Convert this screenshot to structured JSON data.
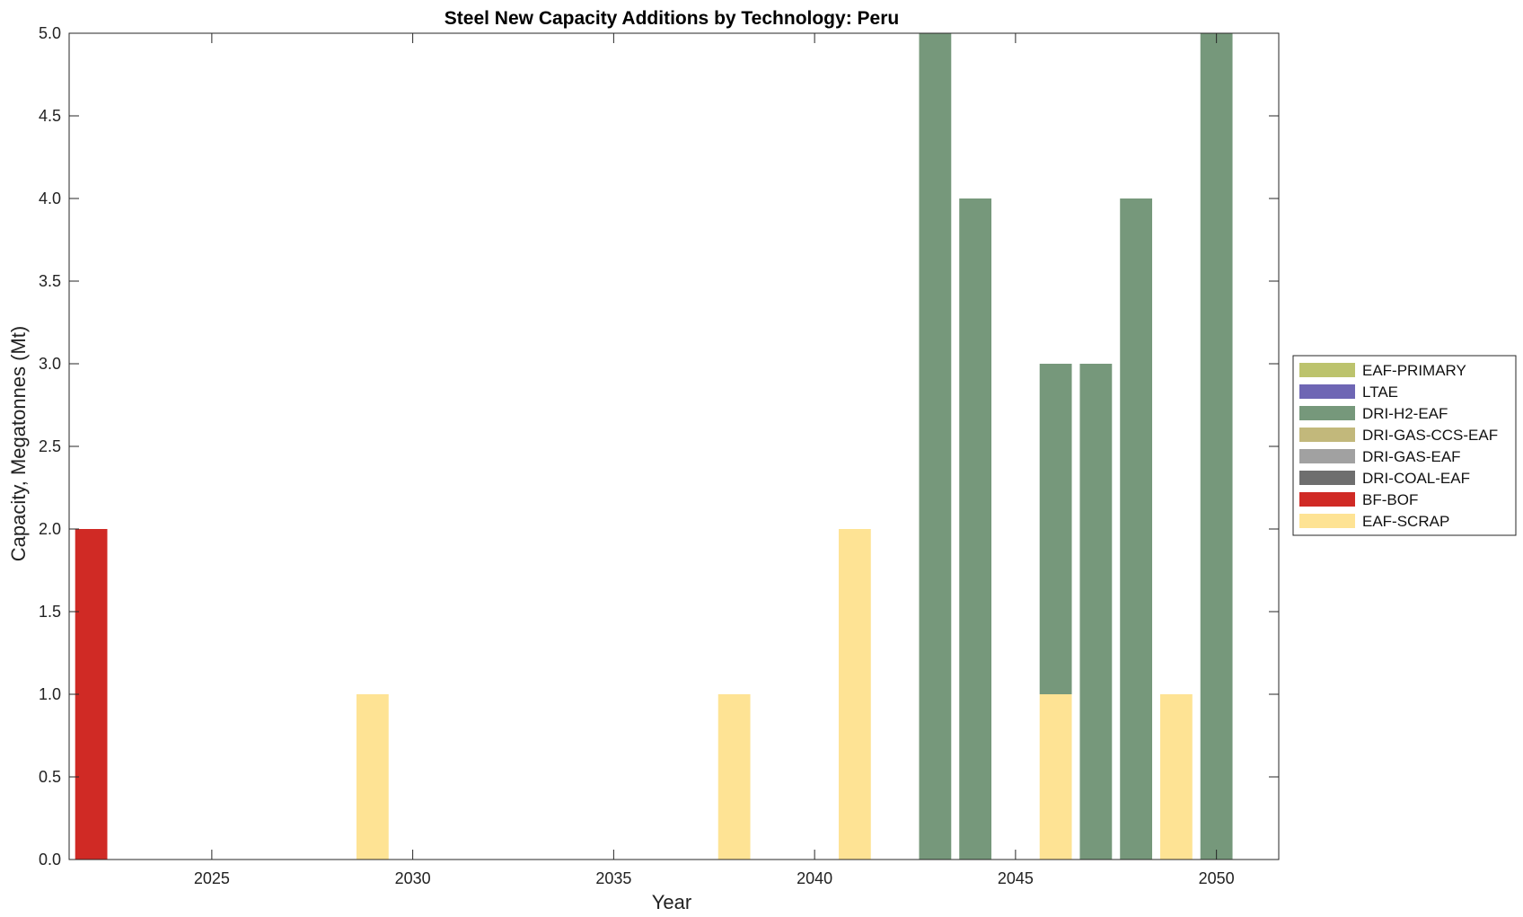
{
  "chart_data": {
    "type": "bar",
    "stacked": true,
    "title": "Steel New Capacity Additions by Technology: Peru",
    "xlabel": "Year",
    "ylabel": "Capacity, Megatonnes (Mt)",
    "xlim": [
      2021.45,
      2051.55
    ],
    "ylim": [
      0,
      5
    ],
    "xticks": [
      2025,
      2030,
      2035,
      2040,
      2045,
      2050
    ],
    "yticks": [
      0.0,
      0.5,
      1.0,
      1.5,
      2.0,
      2.5,
      3.0,
      3.5,
      4.0,
      4.5,
      5.0
    ],
    "ytick_labels": [
      "0.0",
      "0.5",
      "1.0",
      "1.5",
      "2.0",
      "2.5",
      "3.0",
      "3.5",
      "4.0",
      "4.5",
      "5.0"
    ],
    "grid": false,
    "legend_position": "right",
    "stack_order": [
      "EAF-SCRAP",
      "BF-BOF",
      "DRI-COAL-EAF",
      "DRI-GAS-EAF",
      "DRI-GAS-CCS-EAF",
      "DRI-H2-EAF",
      "LTAE",
      "EAF-PRIMARY"
    ],
    "x": [
      2022,
      2029,
      2038,
      2041,
      2043,
      2044,
      2046,
      2047,
      2048,
      2049,
      2050
    ],
    "series": [
      {
        "name": "EAF-PRIMARY",
        "color": "#bcc36d",
        "values": [
          0,
          0,
          0,
          0,
          0,
          0,
          0,
          0,
          0,
          0,
          0
        ]
      },
      {
        "name": "LTAE",
        "color": "#6e66b4",
        "values": [
          0,
          0,
          0,
          0,
          0,
          0,
          0,
          0,
          0,
          0,
          0
        ]
      },
      {
        "name": "DRI-H2-EAF",
        "color": "#76987b",
        "values": [
          0,
          0,
          0,
          0,
          5,
          4,
          2,
          3,
          4,
          0,
          5
        ]
      },
      {
        "name": "DRI-GAS-CCS-EAF",
        "color": "#c2b87b",
        "values": [
          0,
          0,
          0,
          0,
          0,
          0,
          0,
          0,
          0,
          0,
          0
        ]
      },
      {
        "name": "DRI-GAS-EAF",
        "color": "#a1a1a1",
        "values": [
          0,
          0,
          0,
          0,
          0,
          0,
          0,
          0,
          0,
          0,
          0
        ]
      },
      {
        "name": "DRI-COAL-EAF",
        "color": "#6e6e6e",
        "values": [
          0,
          0,
          0,
          0,
          0,
          0,
          0,
          0,
          0,
          0,
          0
        ]
      },
      {
        "name": "BF-BOF",
        "color": "#d02a25",
        "values": [
          2,
          0,
          0,
          0,
          0,
          0,
          0,
          0,
          0,
          0,
          0
        ]
      },
      {
        "name": "EAF-SCRAP",
        "color": "#fee394",
        "values": [
          0,
          1,
          1,
          2,
          0,
          0,
          1,
          0,
          0,
          1,
          0
        ]
      }
    ]
  }
}
